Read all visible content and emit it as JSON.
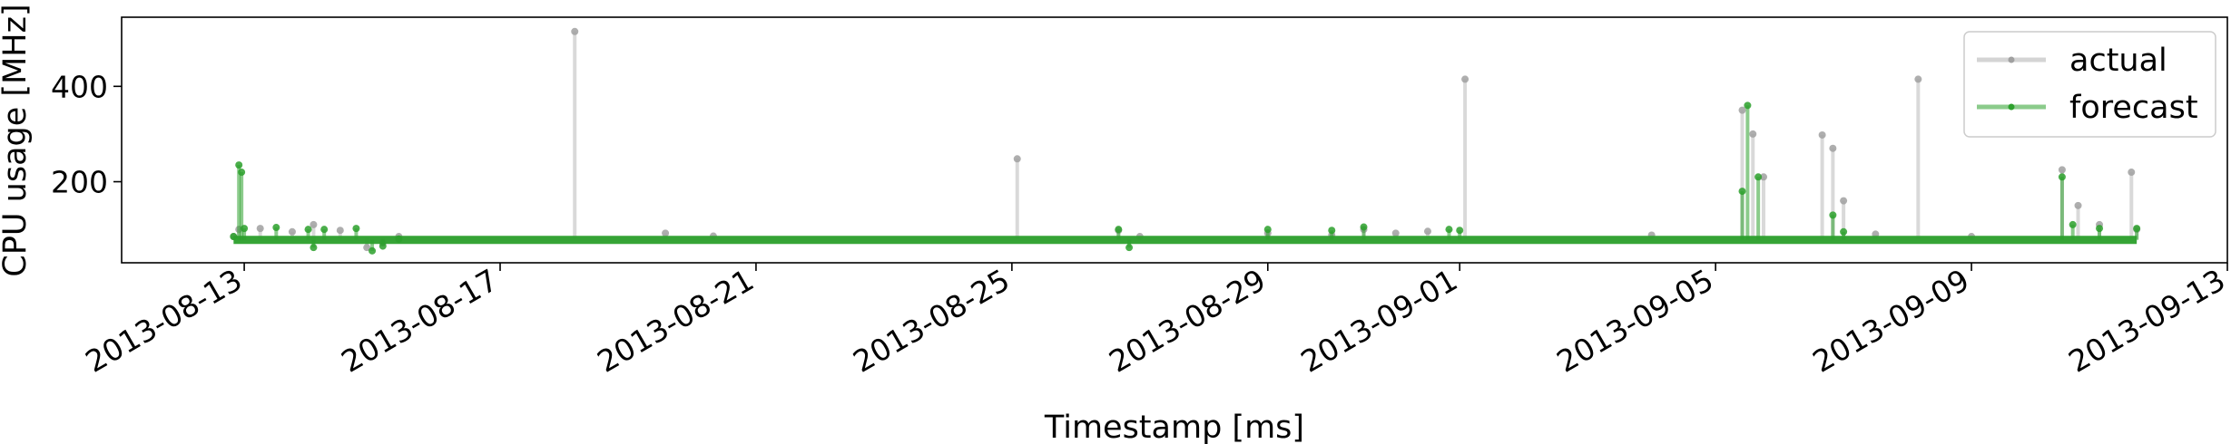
{
  "chart_data": {
    "type": "line",
    "title": "",
    "xlabel": "Timestamp [ms]",
    "ylabel": "CPU usage [MHz]",
    "x_ticks": [
      "2013-08-13",
      "2013-08-17",
      "2013-08-21",
      "2013-08-25",
      "2013-08-29",
      "2013-09-01",
      "2013-09-05",
      "2013-09-09",
      "2013-09-13"
    ],
    "y_ticks": [
      200,
      400
    ],
    "xlim": [
      "2013-08-11T02:00",
      "2013-09-13T00:00"
    ],
    "ylim": [
      30,
      545
    ],
    "grid": false,
    "legend_position": "top-right",
    "series": [
      {
        "name": "actual",
        "color": "#a0a0a0",
        "alpha": 0.4,
        "baseline": 80,
        "points": [
          [
            "2013-08-12T20:00",
            85
          ],
          [
            "2013-08-12T22:00",
            100
          ],
          [
            "2013-08-13T06:00",
            102
          ],
          [
            "2013-08-13T18:00",
            95
          ],
          [
            "2013-08-14T02:00",
            110
          ],
          [
            "2013-08-14T12:00",
            98
          ],
          [
            "2013-08-14T22:00",
            62
          ],
          [
            "2013-08-15T04:00",
            72
          ],
          [
            "2013-08-15T10:00",
            85
          ],
          [
            "2013-08-18T04:00",
            515
          ],
          [
            "2013-08-19T14:00",
            92
          ],
          [
            "2013-08-20T08:00",
            86
          ],
          [
            "2013-08-25T02:00",
            248
          ],
          [
            "2013-08-26T16:00",
            98
          ],
          [
            "2013-08-27T00:00",
            85
          ],
          [
            "2013-08-29T00:00",
            92
          ],
          [
            "2013-08-30T00:00",
            88
          ],
          [
            "2013-08-30T12:00",
            100
          ],
          [
            "2013-08-31T00:00",
            92
          ],
          [
            "2013-08-31T12:00",
            96
          ],
          [
            "2013-09-01T02:00",
            415
          ],
          [
            "2013-09-04T00:00",
            88
          ],
          [
            "2013-09-05T10:00",
            350
          ],
          [
            "2013-09-05T14:00",
            300
          ],
          [
            "2013-09-05T18:00",
            210
          ],
          [
            "2013-09-06T16:00",
            298
          ],
          [
            "2013-09-06T20:00",
            270
          ],
          [
            "2013-09-07T00:00",
            160
          ],
          [
            "2013-09-07T12:00",
            90
          ],
          [
            "2013-09-08T04:00",
            415
          ],
          [
            "2013-09-09T00:00",
            85
          ],
          [
            "2013-09-10T10:00",
            225
          ],
          [
            "2013-09-10T16:00",
            150
          ],
          [
            "2013-09-11T00:00",
            110
          ],
          [
            "2013-09-11T12:00",
            220
          ],
          [
            "2013-09-11T14:00",
            100
          ]
        ]
      },
      {
        "name": "forecast",
        "color": "#2ca02c",
        "alpha": 0.55,
        "baseline": 78,
        "points": [
          [
            "2013-08-12T20:00",
            85
          ],
          [
            "2013-08-12T22:00",
            235
          ],
          [
            "2013-08-12T23:00",
            220
          ],
          [
            "2013-08-13T00:00",
            102
          ],
          [
            "2013-08-13T12:00",
            104
          ],
          [
            "2013-08-14T00:00",
            100
          ],
          [
            "2013-08-14T02:00",
            62
          ],
          [
            "2013-08-14T06:00",
            100
          ],
          [
            "2013-08-14T18:00",
            102
          ],
          [
            "2013-08-15T00:00",
            55
          ],
          [
            "2013-08-15T04:00",
            65
          ],
          [
            "2013-08-15T10:00",
            80
          ],
          [
            "2013-08-26T16:00",
            100
          ],
          [
            "2013-08-26T20:00",
            62
          ],
          [
            "2013-08-29T00:00",
            100
          ],
          [
            "2013-08-30T00:00",
            98
          ],
          [
            "2013-08-30T12:00",
            105
          ],
          [
            "2013-08-31T20:00",
            100
          ],
          [
            "2013-09-01T00:00",
            98
          ],
          [
            "2013-09-05T10:00",
            180
          ],
          [
            "2013-09-05T12:00",
            360
          ],
          [
            "2013-09-05T16:00",
            210
          ],
          [
            "2013-09-06T20:00",
            130
          ],
          [
            "2013-09-07T00:00",
            95
          ],
          [
            "2013-09-10T10:00",
            210
          ],
          [
            "2013-09-10T14:00",
            110
          ],
          [
            "2013-09-11T00:00",
            102
          ],
          [
            "2013-09-11T14:00",
            102
          ]
        ]
      }
    ]
  }
}
